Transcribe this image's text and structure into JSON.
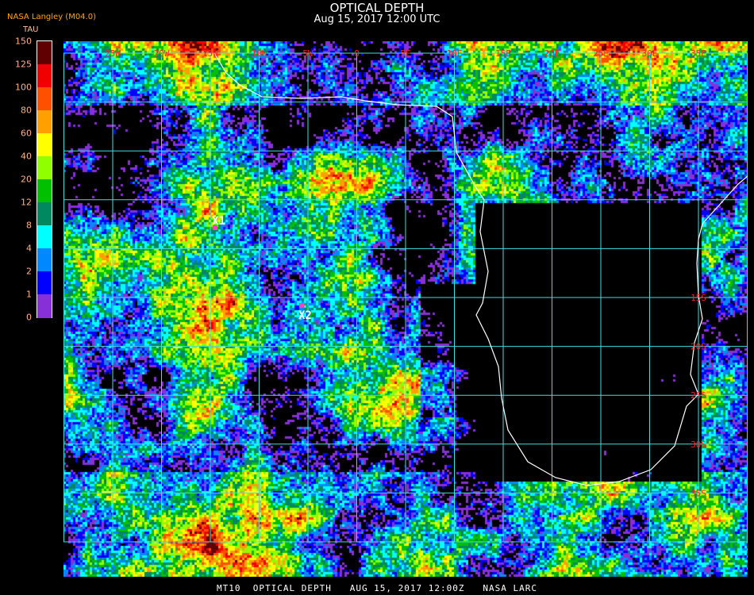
{
  "header": {
    "title": "OPTICAL DEPTH",
    "subtitle": "Aug 15, 2017 12:00 UTC"
  },
  "organization": "NASA Langley (M04.0)",
  "legend": {
    "unit": "TAU",
    "ticks": [
      "150",
      "125",
      "100",
      "80",
      "60",
      "40",
      "20",
      "12",
      "8",
      "4",
      "2",
      "1",
      "0"
    ],
    "colors": [
      "#600000",
      "#f00000",
      "#ff5000",
      "#ffa000",
      "#ffff00",
      "#90ff00",
      "#00c000",
      "#008860",
      "#00ffff",
      "#0088ff",
      "#0000ff",
      "#8830d8"
    ]
  },
  "map": {
    "longitude_labels": [
      "25W",
      "20W",
      "15W",
      "10W",
      "5W",
      "0",
      "5E",
      "10E",
      "15E",
      "20E",
      "25E",
      "30E",
      "35E"
    ],
    "latitude_labels": [
      "15S",
      "20S",
      "25S",
      "30S",
      "35S"
    ],
    "grid_color": "#40e0e0",
    "coastline_color": "#ffffff",
    "markers": [
      {
        "label": "X1",
        "color": "#ff40c0"
      },
      {
        "label": "X2",
        "color": "#ff40c0"
      }
    ]
  },
  "footer": "MT10  OPTICAL DEPTH   AUG 15, 2017 12:00Z   NASA LARC"
}
